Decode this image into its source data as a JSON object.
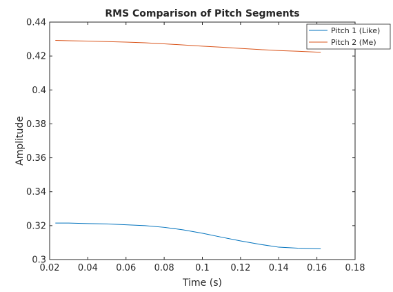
{
  "chart_data": {
    "type": "line",
    "title": "RMS Comparison of Pitch Segments",
    "xlabel": "Time (s)",
    "ylabel": "Amplitude",
    "xlim": [
      0.02,
      0.18
    ],
    "ylim": [
      0.3,
      0.44
    ],
    "x_ticks": [
      0.02,
      0.04,
      0.06,
      0.08,
      0.1,
      0.12,
      0.14,
      0.16,
      0.18
    ],
    "x_tick_labels": [
      "0.02",
      "0.04",
      "0.06",
      "0.08",
      "0.1",
      "0.12",
      "0.14",
      "0.16",
      "0.18"
    ],
    "y_ticks": [
      0.3,
      0.32,
      0.34,
      0.36,
      0.38,
      0.4,
      0.42,
      0.44
    ],
    "y_tick_labels": [
      "0.3",
      "0.32",
      "0.34",
      "0.36",
      "0.38",
      "0.4",
      "0.42",
      "0.44"
    ],
    "grid": false,
    "legend_position": "top-right",
    "series": [
      {
        "name": "Pitch 1 (Like)",
        "color": "#0072BD",
        "x": [
          0.023,
          0.03,
          0.04,
          0.05,
          0.06,
          0.07,
          0.08,
          0.09,
          0.1,
          0.11,
          0.12,
          0.13,
          0.14,
          0.15,
          0.162
        ],
        "y": [
          0.3215,
          0.3215,
          0.3212,
          0.321,
          0.3205,
          0.32,
          0.319,
          0.3175,
          0.3155,
          0.3132,
          0.311,
          0.309,
          0.3073,
          0.3067,
          0.3063
        ]
      },
      {
        "name": "Pitch 2 (Me)",
        "color": "#D95319",
        "x": [
          0.023,
          0.03,
          0.04,
          0.05,
          0.06,
          0.07,
          0.08,
          0.09,
          0.1,
          0.11,
          0.12,
          0.13,
          0.14,
          0.15,
          0.162
        ],
        "y": [
          0.4292,
          0.429,
          0.4288,
          0.4285,
          0.4282,
          0.4278,
          0.4272,
          0.4265,
          0.4258,
          0.4252,
          0.4245,
          0.4238,
          0.4232,
          0.4228,
          0.4222
        ]
      }
    ]
  }
}
